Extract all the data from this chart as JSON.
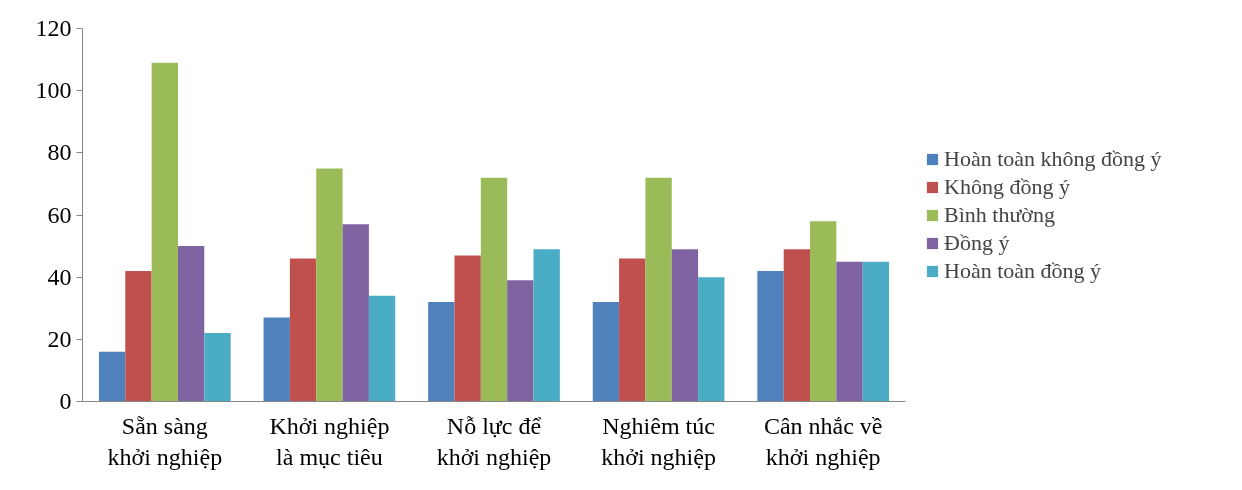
{
  "chart_data": {
    "type": "bar",
    "categories": [
      "Sẵn sàng\nkhởi nghiệp",
      "Khởi nghiệp\nlà mục tiêu",
      "Nỗ lực để\nkhởi nghiệp",
      "Nghiêm túc\nkhởi nghiệp",
      "Cân nhắc về\nkhởi nghiệp"
    ],
    "series": [
      {
        "name": "Hoàn toàn không đồng ý",
        "color": "#4f81bd",
        "values": [
          16,
          27,
          32,
          32,
          42
        ]
      },
      {
        "name": "Không đồng ý",
        "color": "#c0504d",
        "values": [
          42,
          46,
          47,
          46,
          49
        ]
      },
      {
        "name": "Bình thường",
        "color": "#9bbb59",
        "values": [
          109,
          75,
          72,
          72,
          58
        ]
      },
      {
        "name": "Đồng ý",
        "color": "#8064a2",
        "values": [
          50,
          57,
          39,
          49,
          45
        ]
      },
      {
        "name": "Hoàn toàn đồng ý",
        "color": "#4bacc6",
        "values": [
          22,
          34,
          49,
          40,
          45
        ]
      }
    ],
    "ylim": [
      0,
      120
    ],
    "yticks": [
      0,
      20,
      40,
      60,
      80,
      100,
      120
    ],
    "grid": false,
    "legend": "right"
  }
}
